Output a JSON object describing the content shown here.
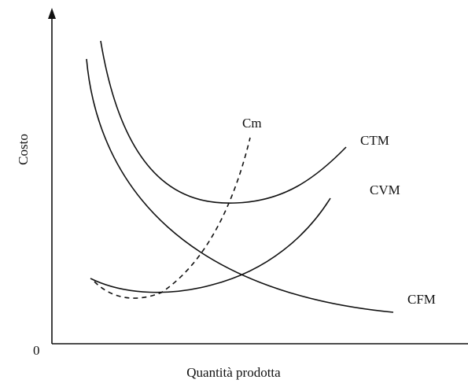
{
  "axes": {
    "y_label": "Costo",
    "x_label": "Quantità prodotta",
    "origin": "0"
  },
  "curves": [
    {
      "label": "Cm"
    },
    {
      "label": "CTM"
    },
    {
      "label": "CVM"
    },
    {
      "label": "CFM"
    }
  ]
}
